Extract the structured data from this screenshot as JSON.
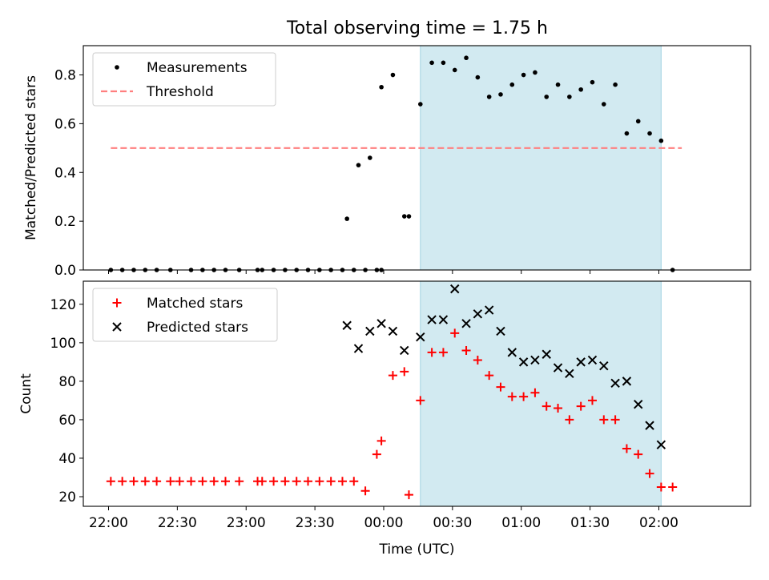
{
  "title": "Total observing time = 1.75 h",
  "colors": {
    "shade": "#add8e6",
    "threshold": "#ff7f7f",
    "measurement": "#000000",
    "matched": "#ff0000",
    "predicted": "#000000"
  },
  "chart_data": [
    {
      "type": "scatter",
      "ylabel": "Matched/Predicted stars",
      "xlabel": "",
      "xlim": [
        "21:49",
        "02:40"
      ],
      "ylim": [
        0,
        0.92
      ],
      "yticks": [
        0.0,
        0.2,
        0.4,
        0.6,
        0.8
      ],
      "ytick_labels": [
        "0.0",
        "0.2",
        "0.4",
        "0.6",
        "0.8"
      ],
      "xtick_labels": [
        "",
        "",
        "",
        "",
        "",
        "",
        "",
        "",
        ""
      ],
      "legend": "top-left",
      "shaded_interval": [
        "00:16",
        "02:01"
      ],
      "series": [
        {
          "name": "Measurements",
          "marker": "dot",
          "x": [
            "22:01",
            "22:06",
            "22:11",
            "22:16",
            "22:21",
            "22:27",
            "22:36",
            "22:41",
            "22:46",
            "22:51",
            "22:57",
            "23:05",
            "23:07",
            "23:12",
            "23:17",
            "23:22",
            "23:27",
            "23:32",
            "23:37",
            "23:42",
            "23:47",
            "23:52",
            "23:57",
            "23:59",
            "23:44",
            "23:49",
            "23:54",
            "23:59",
            "00:04",
            "00:09",
            "00:11",
            "00:16",
            "00:21",
            "00:26",
            "00:31",
            "00:36",
            "00:41",
            "00:46",
            "00:51",
            "00:56",
            "01:01",
            "01:06",
            "01:11",
            "01:16",
            "01:21",
            "01:26",
            "01:31",
            "01:36",
            "01:41",
            "01:46",
            "01:51",
            "01:56",
            "02:01",
            "02:06"
          ],
          "y": [
            0,
            0,
            0,
            0,
            0,
            0,
            0,
            0,
            0,
            0,
            0,
            0,
            0,
            0,
            0,
            0,
            0,
            0,
            0,
            0,
            0,
            0,
            0,
            0,
            0.21,
            0.43,
            0.46,
            0.75,
            0.8,
            0.22,
            0.22,
            0.68,
            0.85,
            0.85,
            0.82,
            0.87,
            0.79,
            0.71,
            0.72,
            0.76,
            0.8,
            0.81,
            0.71,
            0.76,
            0.71,
            0.74,
            0.77,
            0.68,
            0.76,
            0.56,
            0.61,
            0.56,
            0.53,
            0
          ]
        },
        {
          "name": "Threshold",
          "marker": "dashed-line",
          "x": [
            "22:01",
            "02:10"
          ],
          "y": [
            0.5,
            0.5
          ]
        }
      ]
    },
    {
      "type": "scatter",
      "ylabel": "Count",
      "xlabel": "Time (UTC)",
      "xlim": [
        "21:49",
        "02:40"
      ],
      "ylim": [
        15,
        132
      ],
      "yticks": [
        20,
        40,
        60,
        80,
        100,
        120
      ],
      "ytick_labels": [
        "20",
        "40",
        "60",
        "80",
        "100",
        "120"
      ],
      "xtick_labels": [
        "22:00",
        "22:30",
        "23:00",
        "23:30",
        "00:00",
        "00:30",
        "01:00",
        "01:30",
        "02:00"
      ],
      "legend": "top-left",
      "shaded_interval": [
        "00:16",
        "02:01"
      ],
      "series": [
        {
          "name": "Matched stars",
          "marker": "plus",
          "x": [
            "22:01",
            "22:06",
            "22:11",
            "22:16",
            "22:21",
            "22:27",
            "22:31",
            "22:36",
            "22:41",
            "22:46",
            "22:51",
            "22:57",
            "23:05",
            "23:07",
            "23:12",
            "23:17",
            "23:22",
            "23:27",
            "23:32",
            "23:37",
            "23:42",
            "23:47",
            "23:52",
            "23:57",
            "23:59",
            "00:04",
            "00:09",
            "00:11",
            "00:16",
            "00:21",
            "00:26",
            "00:31",
            "00:36",
            "00:41",
            "00:46",
            "00:51",
            "00:56",
            "01:01",
            "01:06",
            "01:11",
            "01:16",
            "01:21",
            "01:26",
            "01:31",
            "01:36",
            "01:41",
            "01:46",
            "01:51",
            "01:56",
            "02:01",
            "02:06"
          ],
          "y": [
            28,
            28,
            28,
            28,
            28,
            28,
            28,
            28,
            28,
            28,
            28,
            28,
            28,
            28,
            28,
            28,
            28,
            28,
            28,
            28,
            28,
            28,
            23,
            42,
            49,
            83,
            85,
            21,
            70,
            95,
            95,
            105,
            96,
            91,
            83,
            77,
            72,
            72,
            74,
            67,
            66,
            60,
            67,
            70,
            60,
            60,
            45,
            42,
            32,
            25,
            25
          ]
        },
        {
          "name": "Predicted stars",
          "marker": "x",
          "x": [
            "23:44",
            "23:49",
            "23:54",
            "23:59",
            "00:04",
            "00:09",
            "00:16",
            "00:21",
            "00:26",
            "00:31",
            "00:36",
            "00:41",
            "00:46",
            "00:51",
            "00:56",
            "01:01",
            "01:06",
            "01:11",
            "01:16",
            "01:21",
            "01:26",
            "01:31",
            "01:36",
            "01:41",
            "01:46",
            "01:51",
            "01:56",
            "02:01"
          ],
          "y": [
            109,
            97,
            106,
            110,
            106,
            96,
            103,
            112,
            112,
            128,
            110,
            115,
            117,
            106,
            95,
            90,
            91,
            94,
            87,
            84,
            90,
            91,
            88,
            79,
            80,
            68,
            57,
            47
          ]
        }
      ]
    }
  ]
}
